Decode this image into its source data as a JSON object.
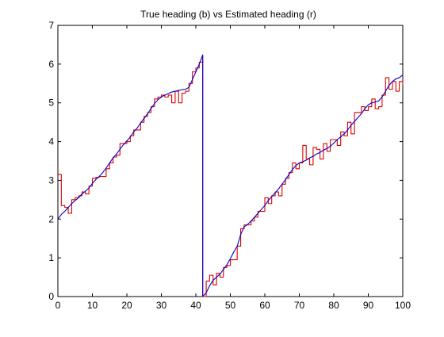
{
  "chart_data": {
    "type": "line",
    "title": "True heading (b) vs Estimated heading (r)",
    "xlabel": "",
    "ylabel": "",
    "xlim": [
      0,
      100
    ],
    "ylim": [
      0,
      7
    ],
    "xticks": [
      0,
      10,
      20,
      30,
      40,
      50,
      60,
      70,
      80,
      90,
      100
    ],
    "yticks": [
      0,
      1,
      2,
      3,
      4,
      5,
      6,
      7
    ],
    "grid": false,
    "legend": "none",
    "series": [
      {
        "color": "#0000c8",
        "style": "line",
        "x": [
          0,
          1,
          2,
          3,
          4,
          5,
          6,
          7,
          8,
          9,
          10,
          11,
          12,
          13,
          14,
          15,
          16,
          17,
          18,
          19,
          20,
          21,
          22,
          23,
          24,
          25,
          26,
          27,
          28,
          29,
          30,
          31,
          32,
          33,
          34,
          35,
          36,
          37,
          38,
          39,
          40,
          41,
          42,
          42,
          43,
          44,
          45,
          46,
          47,
          48,
          49,
          50,
          51,
          52,
          53,
          54,
          55,
          56,
          57,
          58,
          59,
          60,
          61,
          62,
          63,
          64,
          65,
          66,
          67,
          68,
          69,
          70,
          71,
          72,
          73,
          74,
          75,
          76,
          77,
          78,
          79,
          80,
          81,
          82,
          83,
          84,
          85,
          86,
          87,
          88,
          89,
          90,
          91,
          92,
          93,
          94,
          95,
          96,
          97,
          98,
          99,
          100
        ],
        "y": [
          2.0,
          2.12,
          2.2,
          2.3,
          2.4,
          2.48,
          2.55,
          2.65,
          2.72,
          2.8,
          2.92,
          3.02,
          3.1,
          3.2,
          3.32,
          3.45,
          3.58,
          3.68,
          3.8,
          3.92,
          4.02,
          4.12,
          4.25,
          4.35,
          4.48,
          4.6,
          4.72,
          4.85,
          4.98,
          5.08,
          5.15,
          5.2,
          5.24,
          5.28,
          5.3,
          5.32,
          5.34,
          5.35,
          5.4,
          5.6,
          5.8,
          6.0,
          6.24,
          0.0,
          0.1,
          0.28,
          0.42,
          0.5,
          0.58,
          0.7,
          0.82,
          0.98,
          1.15,
          1.3,
          1.6,
          1.8,
          1.86,
          1.95,
          2.05,
          2.15,
          2.25,
          2.35,
          2.48,
          2.58,
          2.68,
          2.78,
          2.9,
          3.02,
          3.15,
          3.28,
          3.38,
          3.45,
          3.48,
          3.52,
          3.58,
          3.62,
          3.68,
          3.72,
          3.78,
          3.82,
          3.88,
          3.96,
          4.05,
          4.12,
          4.2,
          4.3,
          4.42,
          4.52,
          4.62,
          4.72,
          4.85,
          4.95,
          5.0,
          5.02,
          5.05,
          5.15,
          5.3,
          5.45,
          5.55,
          5.62,
          5.65,
          5.72
        ]
      },
      {
        "color": "#dd0000",
        "style": "step",
        "x": [
          0,
          1,
          2,
          3,
          4,
          5,
          6,
          7,
          8,
          9,
          10,
          11,
          12,
          13,
          14,
          15,
          16,
          17,
          18,
          19,
          20,
          21,
          22,
          23,
          24,
          25,
          26,
          27,
          28,
          29,
          30,
          31,
          32,
          33,
          34,
          35,
          36,
          37,
          38,
          39,
          40,
          41,
          42,
          42,
          43,
          44,
          45,
          46,
          47,
          48,
          49,
          50,
          51,
          52,
          53,
          54,
          55,
          56,
          57,
          58,
          59,
          60,
          61,
          62,
          63,
          64,
          65,
          66,
          67,
          68,
          69,
          70,
          71,
          72,
          73,
          74,
          75,
          76,
          77,
          78,
          79,
          80,
          81,
          82,
          83,
          84,
          85,
          86,
          87,
          88,
          89,
          90,
          91,
          92,
          93,
          94,
          95,
          96,
          97,
          98,
          99,
          100
        ],
        "y": [
          3.15,
          2.35,
          2.3,
          2.15,
          2.5,
          2.55,
          2.6,
          2.7,
          2.65,
          2.85,
          3.05,
          3.08,
          3.1,
          3.1,
          3.3,
          3.45,
          3.6,
          3.65,
          3.95,
          3.95,
          4.0,
          4.15,
          4.3,
          4.3,
          4.5,
          4.65,
          4.75,
          4.9,
          5.1,
          5.15,
          5.2,
          5.15,
          5.2,
          5.0,
          5.3,
          5.0,
          5.25,
          5.3,
          5.5,
          5.8,
          5.9,
          6.05,
          6.2,
          0.0,
          0.4,
          0.55,
          0.3,
          0.6,
          0.5,
          0.75,
          0.8,
          0.95,
          0.95,
          1.3,
          1.75,
          1.85,
          1.85,
          1.95,
          2.05,
          2.2,
          2.2,
          2.55,
          2.4,
          2.6,
          2.7,
          2.6,
          2.9,
          3.05,
          3.2,
          3.45,
          3.3,
          3.45,
          3.9,
          3.55,
          3.4,
          3.85,
          3.8,
          3.55,
          3.95,
          3.75,
          4.05,
          4.05,
          3.9,
          4.25,
          4.15,
          4.5,
          4.2,
          4.75,
          4.75,
          4.9,
          4.8,
          4.9,
          5.1,
          4.85,
          4.9,
          5.2,
          5.65,
          5.35,
          5.55,
          5.3,
          5.55,
          5.45
        ]
      }
    ]
  }
}
